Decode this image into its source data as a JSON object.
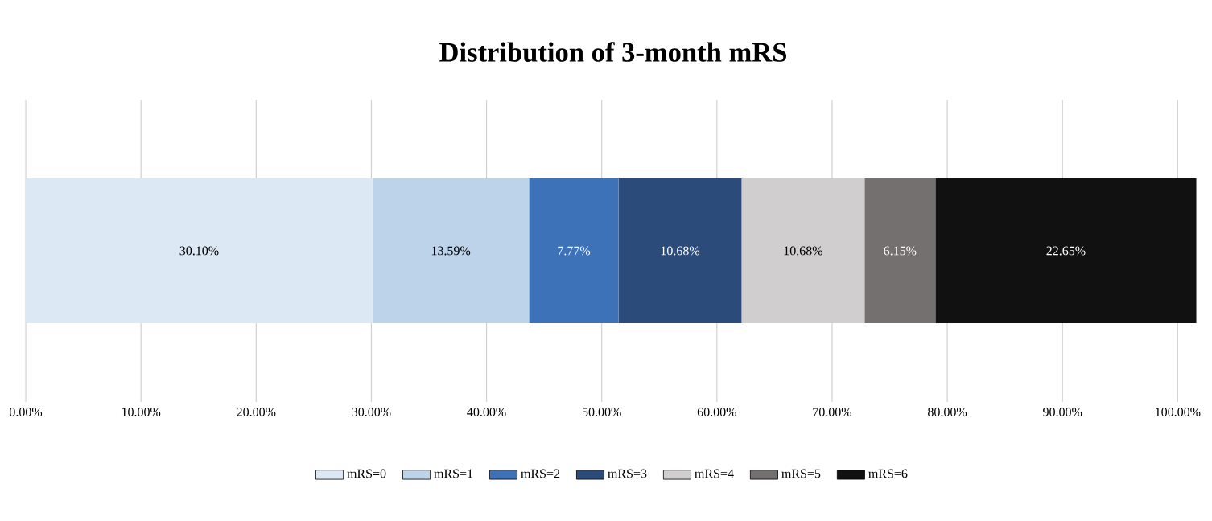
{
  "chart_data": {
    "type": "bar",
    "orientation": "horizontal",
    "stacked": true,
    "title": "Distribution of 3-month mRS",
    "categories": [
      null
    ],
    "series": [
      {
        "name": "mRS=0",
        "color": "#dde8f5",
        "values": [
          30.1
        ],
        "value_labels": [
          "30.10%"
        ]
      },
      {
        "name": "mRS=1",
        "color": "#bdd3ea",
        "values": [
          13.59
        ],
        "value_labels": [
          "13.59%"
        ]
      },
      {
        "name": "mRS=2",
        "color": "#3d72b8",
        "values": [
          7.77
        ],
        "value_labels": [
          "7.77%"
        ]
      },
      {
        "name": "mRS=3",
        "color": "#2b4c7a",
        "values": [
          10.68
        ],
        "value_labels": [
          "10.68%"
        ]
      },
      {
        "name": "mRS=4",
        "color": "#d0cece",
        "values": [
          10.68
        ],
        "value_labels": [
          "10.68%"
        ]
      },
      {
        "name": "mRS=5",
        "color": "#757070",
        "values": [
          6.15
        ],
        "value_labels": [
          "6.15%"
        ]
      },
      {
        "name": "mRS=6",
        "color": "#111111",
        "values": [
          22.65
        ],
        "value_labels": [
          "22.65%"
        ]
      }
    ],
    "xlim": [
      0,
      102
    ],
    "xticks": [
      {
        "value": 0,
        "label": "0.00%"
      },
      {
        "value": 10,
        "label": "10.00%"
      },
      {
        "value": 20,
        "label": "20.00%"
      },
      {
        "value": 30,
        "label": "30.00%"
      },
      {
        "value": 40,
        "label": "40.00%"
      },
      {
        "value": 50,
        "label": "50.00%"
      },
      {
        "value": 60,
        "label": "60.00%"
      },
      {
        "value": 70,
        "label": "70.00%"
      },
      {
        "value": 80,
        "label": "80.00%"
      },
      {
        "value": 90,
        "label": "90.00%"
      },
      {
        "value": 100,
        "label": "100.00%"
      }
    ],
    "grid": "x",
    "legend": "bottom"
  }
}
